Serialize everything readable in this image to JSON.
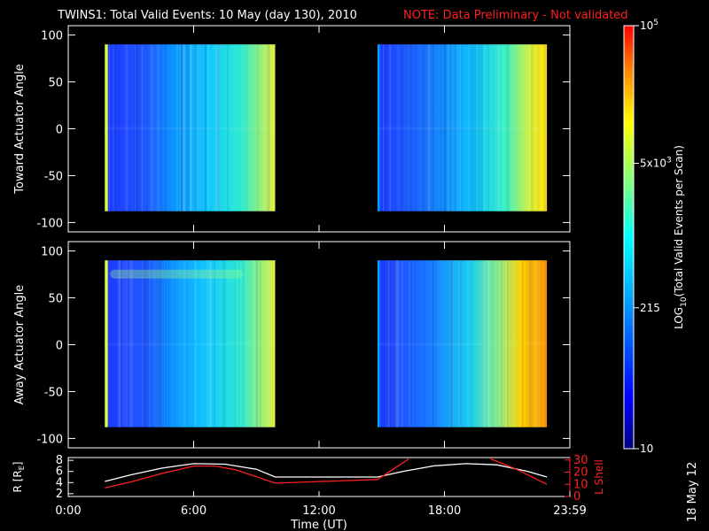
{
  "chart_data": [
    {
      "type": "heatmap",
      "panel": "toward",
      "ylabel": "Toward Actuator Angle",
      "ylim": [
        -110,
        110
      ],
      "yticks": [
        100,
        50,
        0,
        -50,
        -100
      ],
      "xlim": [
        0,
        24
      ],
      "data_ranges_hours": [
        [
          1.75,
          9.9
        ],
        [
          14.8,
          22.9
        ]
      ],
      "angle_range": [
        -88,
        90
      ]
    },
    {
      "type": "heatmap",
      "panel": "away",
      "ylabel": "Away Actuator Angle",
      "ylim": [
        -110,
        110
      ],
      "yticks": [
        100,
        50,
        0,
        -50,
        -100
      ],
      "xlim": [
        0,
        24
      ],
      "data_ranges_hours": [
        [
          1.75,
          9.9
        ],
        [
          14.8,
          22.9
        ]
      ],
      "angle_range": [
        -88,
        90
      ]
    },
    {
      "type": "line",
      "panel": "orbit",
      "xlabel": "Time (UT)",
      "xticks": [
        "0:00",
        "6:00",
        "12:00",
        "18:00",
        "23:59"
      ],
      "xlim": [
        0,
        24
      ],
      "left_axis": {
        "label_parts": [
          "R [R",
          "E",
          "]"
        ],
        "ylim": [
          1.5,
          8.5
        ],
        "yticks": [
          2,
          4,
          6,
          8
        ]
      },
      "right_axis": {
        "label": "L Shell",
        "ylim": [
          0,
          32
        ],
        "yticks": [
          0,
          10,
          20,
          30
        ]
      },
      "series": [
        {
          "axis": "left",
          "color": "#ffffff",
          "x": [
            1.75,
            3,
            4.5,
            6,
            7.5,
            9,
            9.9,
            11,
            13,
            14.8,
            16,
            17.5,
            19,
            20.5,
            22,
            22.9
          ],
          "y": [
            4.2,
            5.4,
            6.6,
            7.4,
            7.3,
            6.4,
            5.0,
            5.0,
            5.0,
            5.0,
            6.0,
            7.0,
            7.4,
            7.2,
            6.0,
            5.0
          ]
        },
        {
          "axis": "right",
          "color": "#ff2020",
          "x": [
            1.75,
            3,
            4.5,
            6,
            7,
            8,
            9.9,
            14.8,
            16.3
          ],
          "y": [
            7,
            12,
            19,
            25,
            25,
            22,
            11,
            14,
            31
          ]
        },
        {
          "axis": "right",
          "color": "#ff2020",
          "x": [
            20.2,
            21.5,
            22.9
          ],
          "y": [
            31,
            22,
            10
          ]
        }
      ]
    }
  ],
  "title": {
    "main": "TWINS1: Total Valid Events: 10 May (day 130), 2010",
    "note": "NOTE: Data Preliminary - Not validated"
  },
  "colorbar": {
    "label_parts": [
      "LOG",
      "10",
      "(Total Valid Events per Scan)"
    ],
    "ticks": [
      {
        "base": "10",
        "exp": "5",
        "value": 100000
      },
      {
        "base": "5x10",
        "exp": "3",
        "value": 5000
      },
      {
        "base": "215",
        "exp": "",
        "value": 215
      },
      {
        "base": "10",
        "exp": "",
        "value": 10
      }
    ],
    "log_range": [
      1,
      5
    ]
  },
  "datestamp": "18 May 12",
  "colors": {
    "axes": "#ffffff",
    "note": "#ff2020"
  }
}
